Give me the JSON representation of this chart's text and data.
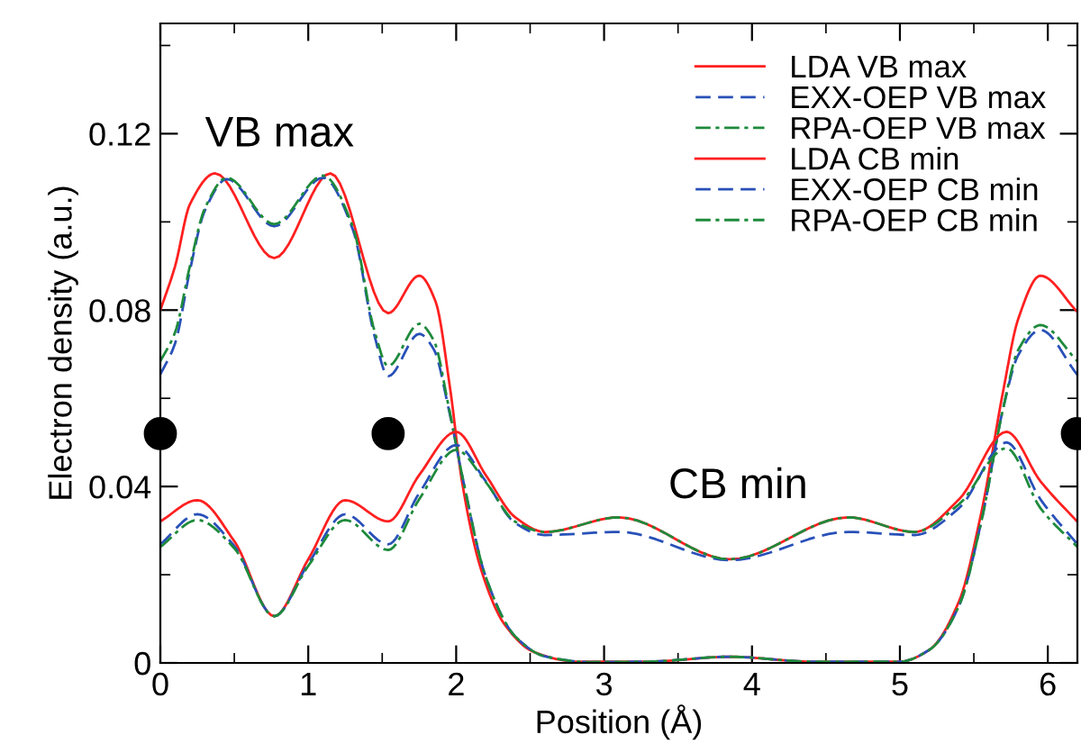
{
  "chart_data": {
    "type": "line",
    "xlabel": "Position (Å)",
    "ylabel": "Electron density (a.u.)",
    "xlim": [
      0,
      6.2
    ],
    "ylim": [
      0,
      0.145
    ],
    "xticks": [
      0,
      {
        "value": 0.5,
        "label": null
      },
      1,
      {
        "value": 1.5,
        "label": null
      },
      2,
      {
        "value": 2.5,
        "label": null
      },
      3,
      {
        "value": 3.5,
        "label": null
      },
      4,
      {
        "value": 4.5,
        "label": null
      },
      5,
      {
        "value": 5.5,
        "label": null
      },
      6
    ],
    "yticks": [
      0,
      {
        "value": 0.02,
        "label": null
      },
      {
        "value": 0.04,
        "label": "0.04"
      },
      {
        "value": 0.06,
        "label": null
      },
      {
        "value": 0.08,
        "label": "0.08"
      },
      {
        "value": 0.1,
        "label": null
      },
      {
        "value": 0.12,
        "label": "0.12"
      },
      {
        "value": 0.14,
        "label": null
      }
    ],
    "grid": false,
    "legend": "top right",
    "marker": "none",
    "annotations": [
      "VB max",
      "CB min"
    ],
    "series": [
      {
        "name": "LDA VB max",
        "color": "#ff2020",
        "line_style": "solid",
        "x": [
          0,
          0.1,
          0.2,
          0.37,
          0.77,
          1.15,
          1.54,
          1.75,
          1.86,
          1.96,
          2.04,
          2.17,
          2.33,
          2.53,
          2.82,
          3.3,
          3.85,
          4.4,
          5.0,
          5.2,
          5.4,
          5.55,
          5.7,
          5.8,
          5.95,
          6.2
        ],
        "values": [
          0.08,
          0.09,
          0.104,
          0.111,
          0.0918,
          0.111,
          0.0793,
          0.0878,
          0.082,
          0.062,
          0.041,
          0.021,
          0.0086,
          0.0024,
          0.0003,
          0.0003,
          0.0014,
          0.0003,
          0.0003,
          0.003,
          0.014,
          0.034,
          0.062,
          0.078,
          0.0878,
          0.0796
        ]
      },
      {
        "name": "EXX-OEP VB max",
        "color": "#2850b8",
        "line_style": "dashed",
        "x": [
          0,
          0.1,
          0.2,
          0.3,
          0.45,
          0.77,
          1.1,
          1.3,
          1.45,
          1.54,
          1.75,
          1.85,
          1.95,
          2.05,
          2.2,
          2.4,
          2.6,
          2.9,
          3.3,
          3.85,
          4.4,
          5.0,
          5.2,
          5.4,
          5.55,
          5.7,
          5.8,
          5.95,
          6.2
        ],
        "values": [
          0.0654,
          0.0725,
          0.089,
          0.1025,
          0.1097,
          0.099,
          0.11,
          0.0984,
          0.0739,
          0.065,
          0.0746,
          0.071,
          0.0575,
          0.041,
          0.0195,
          0.006,
          0.0015,
          0.0002,
          0.0003,
          0.0014,
          0.0003,
          0.0003,
          0.003,
          0.013,
          0.032,
          0.058,
          0.0698,
          0.0755,
          0.0653
        ]
      },
      {
        "name": "RPA-OEP VB max",
        "color": "#1e8a3c",
        "line_style": "dashdot",
        "x": [
          0,
          0.1,
          0.2,
          0.3,
          0.45,
          0.77,
          1.1,
          1.3,
          1.45,
          1.54,
          1.75,
          1.85,
          1.95,
          2.05,
          2.2,
          2.4,
          2.6,
          2.9,
          3.3,
          3.85,
          4.4,
          5.0,
          5.2,
          5.4,
          5.55,
          5.7,
          5.8,
          5.95,
          6.2
        ],
        "values": [
          0.0684,
          0.075,
          0.09,
          0.103,
          0.11,
          0.0995,
          0.1105,
          0.099,
          0.075,
          0.0673,
          0.0769,
          0.073,
          0.058,
          0.041,
          0.0195,
          0.006,
          0.0015,
          0.0002,
          0.0003,
          0.0014,
          0.0003,
          0.0003,
          0.003,
          0.013,
          0.032,
          0.058,
          0.071,
          0.0766,
          0.0684
        ]
      },
      {
        "name": "LDA CB min",
        "color": "#ff2020",
        "line_style": "solid",
        "x": [
          0,
          0.25,
          0.5,
          0.77,
          1.0,
          1.25,
          1.54,
          1.75,
          2.0,
          2.2,
          2.4,
          2.6,
          3.1,
          3.85,
          4.65,
          5.1,
          5.4,
          5.72,
          5.95,
          6.2
        ],
        "values": [
          0.0321,
          0.0369,
          0.0276,
          0.0106,
          0.0235,
          0.0369,
          0.0321,
          0.0426,
          0.0524,
          0.0426,
          0.033,
          0.0297,
          0.033,
          0.0235,
          0.033,
          0.0297,
          0.0371,
          0.0524,
          0.0412,
          0.032
        ]
      },
      {
        "name": "EXX-OEP CB min",
        "color": "#2850b8",
        "line_style": "dashed",
        "x": [
          0,
          0.25,
          0.5,
          0.77,
          1.0,
          1.25,
          1.54,
          1.75,
          2.0,
          2.2,
          2.4,
          2.6,
          3.1,
          3.85,
          4.65,
          5.1,
          5.4,
          5.72,
          5.95,
          6.2
        ],
        "values": [
          0.0269,
          0.0337,
          0.0265,
          0.0106,
          0.0225,
          0.0337,
          0.0269,
          0.0385,
          0.0494,
          0.0412,
          0.0317,
          0.029,
          0.0297,
          0.0233,
          0.0297,
          0.029,
          0.0351,
          0.05,
          0.0371,
          0.0269
        ]
      },
      {
        "name": "RPA-OEP CB min",
        "color": "#1e8a3c",
        "line_style": "dashdot",
        "x": [
          0,
          0.25,
          0.5,
          0.77,
          1.0,
          1.25,
          1.54,
          1.75,
          2.0,
          2.2,
          2.4,
          2.6,
          3.1,
          3.85,
          4.65,
          5.1,
          5.4,
          5.72,
          5.95,
          6.2
        ],
        "values": [
          0.0263,
          0.0324,
          0.026,
          0.0106,
          0.022,
          0.0324,
          0.0256,
          0.0371,
          0.0483,
          0.041,
          0.032,
          0.0297,
          0.033,
          0.0235,
          0.033,
          0.0297,
          0.036,
          0.0487,
          0.0351,
          0.0263
        ]
      },
      {
        "type": "scatter",
        "color": "#000000",
        "marker": "circle",
        "x": [
          0,
          1.54,
          6.2
        ],
        "values": [
          0.052,
          0.052,
          0.052
        ]
      }
    ]
  }
}
